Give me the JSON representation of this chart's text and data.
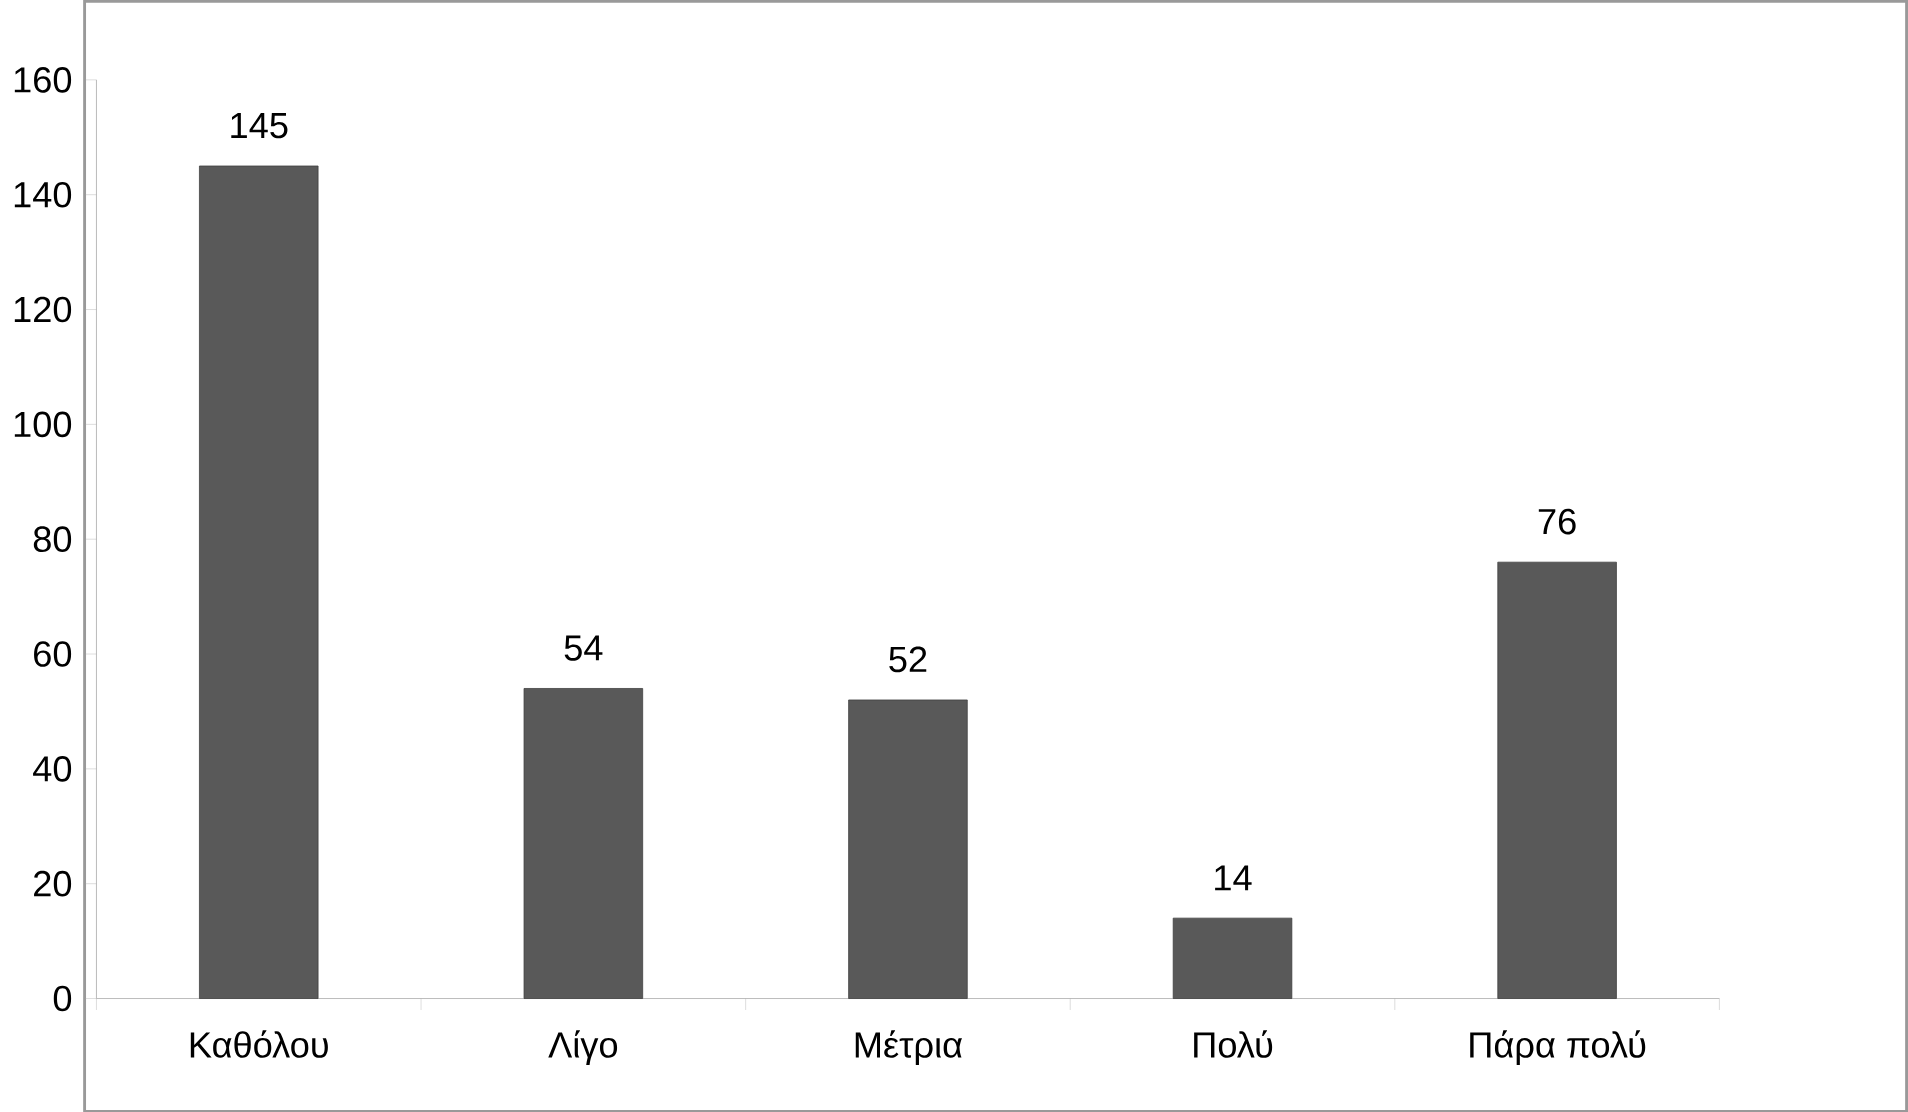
{
  "chart_data": {
    "type": "bar",
    "categories": [
      "Καθόλου",
      "Λίγο",
      "Μέτρια",
      "Πολύ",
      "Πάρα πολύ"
    ],
    "values": [
      145,
      54,
      52,
      14,
      76
    ],
    "color": "#595959",
    "ylim": [
      0,
      160
    ],
    "yticks": [
      0,
      20,
      40,
      60,
      80,
      100,
      120,
      140,
      160
    ],
    "data_labels": true
  }
}
